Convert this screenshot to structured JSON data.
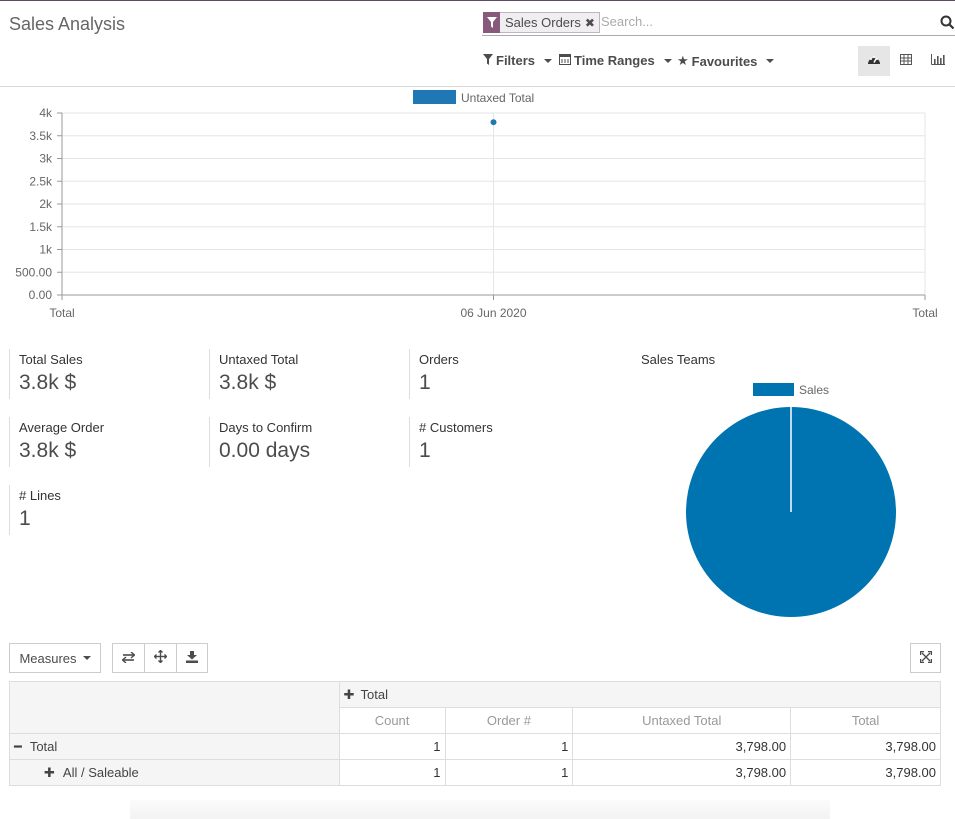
{
  "app": {
    "title": "Sales Analysis"
  },
  "search": {
    "facet_label": "Sales Orders",
    "facet_close": "✖",
    "placeholder": "Search..."
  },
  "filters": {
    "filters_label": "Filters",
    "time_ranges_label": "Time Ranges",
    "favourites_label": "Favourites"
  },
  "views": [
    "dashboard-icon",
    "pivot-icon",
    "graph-icon"
  ],
  "chart_data": {
    "type": "line",
    "series": [
      {
        "name": "Untaxed Total",
        "values": [
          3798
        ]
      }
    ],
    "x": [
      "06 Jun 2020"
    ],
    "x_tick_labels": [
      "Total",
      "06 Jun 2020",
      "Total"
    ],
    "y_tick_labels": [
      "0.00",
      "500.00",
      "1k",
      "1.5k",
      "2k",
      "2.5k",
      "3k",
      "3.5k",
      "4k"
    ],
    "ylim": [
      0,
      4000
    ],
    "grid": true,
    "legend": "top-center",
    "color": "#1f77b4"
  },
  "kpis": [
    {
      "label": "Total Sales",
      "value": "3.8k $"
    },
    {
      "label": "Untaxed Total",
      "value": "3.8k $"
    },
    {
      "label": "Orders",
      "value": "1"
    },
    {
      "label": "Average Order",
      "value": "3.8k $"
    },
    {
      "label": "Days to Confirm",
      "value": "0.00 days"
    },
    {
      "label": "# Customers",
      "value": "1"
    },
    {
      "label": "# Lines",
      "value": "1"
    }
  ],
  "sales_teams": {
    "title": "Sales Teams",
    "chart_data": {
      "type": "pie",
      "categories": [
        "Sales"
      ],
      "values": [
        1
      ],
      "legend": "top",
      "color": "#0074b1"
    }
  },
  "pivot": {
    "measures_label": "Measures",
    "col_header": "Total",
    "measures": [
      "Count",
      "Order #",
      "Untaxed Total",
      "Total"
    ],
    "rows": [
      {
        "label": "Total",
        "values": [
          "1",
          "1",
          "3,798.00",
          "3,798.00"
        ]
      },
      {
        "label": "All / Saleable",
        "values": [
          "1",
          "1",
          "3,798.00",
          "3,798.00"
        ]
      }
    ]
  }
}
